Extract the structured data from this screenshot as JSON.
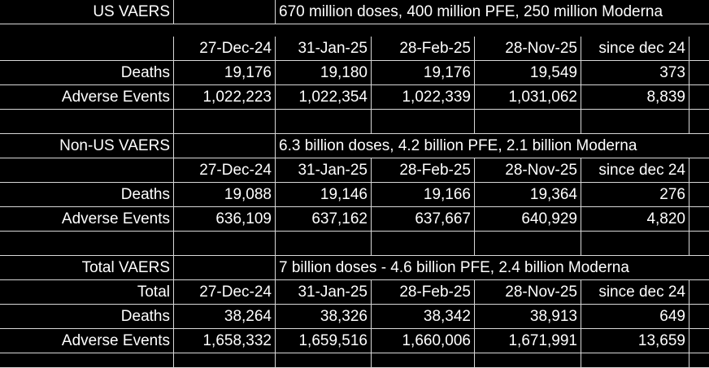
{
  "sections": [
    {
      "title": "US VAERS",
      "note": "670 million doses, 400 million PFE, 250 million Moderna",
      "header_label": "",
      "dates": [
        "27-Dec-24",
        "31-Jan-25",
        "28-Feb-25",
        "28-Nov-25",
        "since dec 24"
      ],
      "rows": [
        {
          "label": "Deaths",
          "values": [
            "19,176",
            "19,180",
            "19,176",
            "19,549",
            "373"
          ]
        },
        {
          "label": "Adverse Events",
          "values": [
            "1,022,223",
            "1,022,354",
            "1,022,339",
            "1,031,062",
            "8,839"
          ]
        }
      ]
    },
    {
      "title": "Non-US VAERS",
      "note": "6.3 billion doses, 4.2 billion PFE, 2.1 billion Moderna",
      "header_label": "",
      "dates": [
        "27-Dec-24",
        "31-Jan-25",
        "28-Feb-25",
        "28-Nov-25",
        "since dec 24"
      ],
      "rows": [
        {
          "label": "Deaths",
          "values": [
            "19,088",
            "19,146",
            "19,166",
            "19,364",
            "276"
          ]
        },
        {
          "label": "Adverse Events",
          "values": [
            "636,109",
            "637,162",
            "637,667",
            "640,929",
            "4,820"
          ]
        }
      ]
    },
    {
      "title": "Total VAERS",
      "note": "7 billion doses - 4.6 billion PFE, 2.4 billion Moderna",
      "header_label": "Total",
      "dates": [
        "27-Dec-24",
        "31-Jan-25",
        "28-Feb-25",
        "28-Nov-25",
        "since dec 24"
      ],
      "rows": [
        {
          "label": "Deaths",
          "values": [
            "38,264",
            "38,326",
            "38,342",
            "38,913",
            "649"
          ]
        },
        {
          "label": "Adverse Events",
          "values": [
            "1,658,332",
            "1,659,516",
            "1,660,006",
            "1,671,991",
            "13,659"
          ]
        }
      ]
    }
  ]
}
